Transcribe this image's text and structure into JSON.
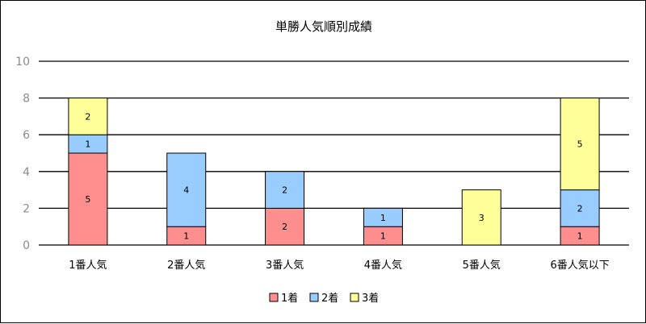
{
  "chart_data": {
    "type": "bar",
    "stacked": true,
    "title": "単勝人気順別成績",
    "categories": [
      "1番人気",
      "2番人気",
      "3番人気",
      "4番人気",
      "5番人気",
      "6番人気以下"
    ],
    "series": [
      {
        "name": "1着",
        "color": "#ff8e8e",
        "values": [
          5,
          1,
          2,
          1,
          0,
          1
        ]
      },
      {
        "name": "2着",
        "color": "#99ccff",
        "values": [
          1,
          4,
          2,
          1,
          0,
          2
        ]
      },
      {
        "name": "3着",
        "color": "#ffff99",
        "values": [
          2,
          0,
          0,
          0,
          3,
          5
        ]
      }
    ],
    "ylim": [
      0,
      10
    ],
    "yticks": [
      0,
      2,
      4,
      6,
      8,
      10
    ],
    "grid": true,
    "legend": "bottom"
  }
}
